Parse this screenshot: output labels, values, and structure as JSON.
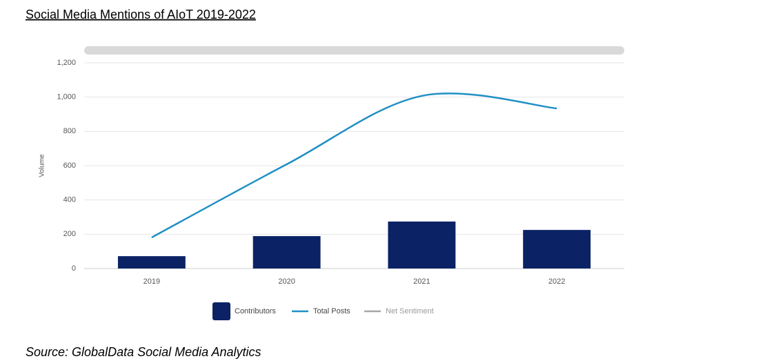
{
  "chart_data": {
    "type": "bar",
    "title": "Social Media Mentions of AIoT 2019-2022",
    "source": "Source: GlobalData Social Media Analytics",
    "ylabel": "Volume",
    "categories": [
      "2019",
      "2020",
      "2021",
      "2022"
    ],
    "series": [
      {
        "name": "Contributors",
        "type": "bar",
        "color": "#0b2265",
        "values": [
          72,
          189,
          274,
          225
        ]
      },
      {
        "name": "Total Posts",
        "type": "line",
        "color": "#1f8fc4",
        "values": [
          181,
          608,
          1007,
          934
        ]
      },
      {
        "name": "Net Sentiment",
        "type": "line",
        "color": "#a6a6a6",
        "values": [
          null,
          null,
          null,
          null
        ]
      }
    ],
    "ylim": [
      0,
      1200
    ],
    "yticks": [
      0,
      200,
      400,
      600,
      800,
      {
        "value": 1000,
        "label": "1,000"
      },
      {
        "value": 1200,
        "label": "1,200"
      }
    ],
    "grid": true
  }
}
